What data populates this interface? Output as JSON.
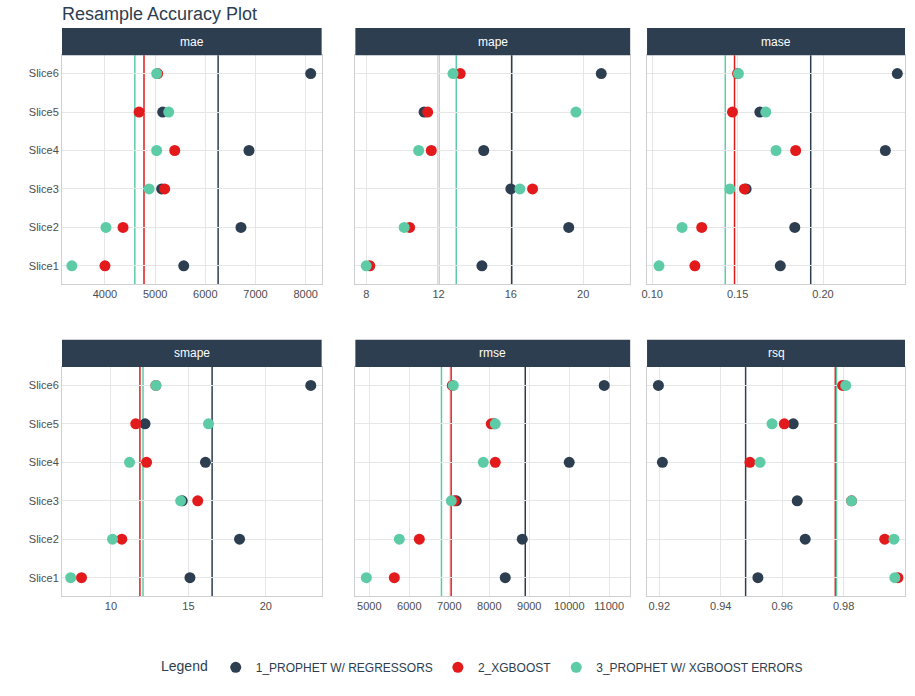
{
  "title": "Resample Accuracy Plot",
  "legend_title": "Legend",
  "legend": "bottom",
  "chart_data": [
    {
      "type": "scatter",
      "title": "mae",
      "grid": true,
      "marker": "circle",
      "categories": [
        "Slice1",
        "Slice2",
        "Slice3",
        "Slice4",
        "Slice5",
        "Slice6"
      ],
      "xlim": [
        3144,
        8318
      ],
      "xticks": [
        4000,
        5000,
        6000,
        7000,
        8000
      ],
      "series": [
        {
          "name": "1_PROPHET W/ REGRESSORS",
          "color": "#2c3e50",
          "values": [
            5570,
            6710,
            5130,
            6870,
            5150,
            8100
          ],
          "mean": 6255
        },
        {
          "name": "2_XGBOOST",
          "color": "#e31a1c",
          "values": [
            4000,
            4360,
            5190,
            5390,
            4680,
            5050
          ],
          "mean": 4778
        },
        {
          "name": "3_PROPHET W/ XGBOOST ERRORS",
          "color": "#5ccba6",
          "values": [
            3340,
            4020,
            4880,
            5030,
            5270,
            5030
          ],
          "mean": 4595
        }
      ]
    },
    {
      "type": "scatter",
      "title": "mape",
      "grid": true,
      "marker": "circle",
      "tick_labels": "x",
      "categories": [
        "Slice1",
        "Slice2",
        "Slice3",
        "Slice4",
        "Slice5",
        "Slice6"
      ],
      "xlim": [
        7.4,
        22.6
      ],
      "xticks": [
        8,
        12,
        16,
        20
      ],
      "series": [
        {
          "name": "1_PROPHET W/ REGRESSORS",
          "color": "#2c3e50",
          "values": [
            14.4,
            19.2,
            16.0,
            14.5,
            11.2,
            21.0
          ],
          "mean": 16.05
        },
        {
          "name": "2_XGBOOST",
          "color": "#e31a1c",
          "values": [
            8.2,
            10.4,
            17.2,
            11.6,
            11.4,
            13.2
          ],
          "mean": 12.0
        },
        {
          "name": "3_PROPHET W/ XGBOOST ERRORS",
          "color": "#5ccba6",
          "values": [
            8.0,
            10.1,
            16.5,
            10.9,
            19.6,
            12.8
          ],
          "mean": 12.98
        }
      ]
    },
    {
      "type": "scatter",
      "title": "mase",
      "grid": true,
      "marker": "circle",
      "tick_labels": "x",
      "categories": [
        "Slice1",
        "Slice2",
        "Slice3",
        "Slice4",
        "Slice5",
        "Slice6"
      ],
      "xlim": [
        0.097,
        0.248
      ],
      "xticks": [
        {
          "value": 0.1,
          "label": "0.10"
        },
        0.15,
        {
          "value": 0.2,
          "label": "0.20"
        }
      ],
      "series": [
        {
          "name": "1_PROPHET W/ REGRESSORS",
          "color": "#2c3e50",
          "values": [
            0.175,
            0.1835,
            0.155,
            0.2365,
            0.163,
            0.2435
          ],
          "mean": 0.1928
        },
        {
          "name": "2_XGBOOST",
          "color": "#e31a1c",
          "values": [
            0.125,
            0.129,
            0.154,
            0.184,
            0.147,
            0.15
          ],
          "mean": 0.1482
        },
        {
          "name": "3_PROPHET W/ XGBOOST ERRORS",
          "color": "#5ccba6",
          "values": [
            0.104,
            0.1175,
            0.1455,
            0.1725,
            0.1665,
            0.1505
          ],
          "mean": 0.1428
        }
      ]
    },
    {
      "type": "scatter",
      "title": "smape",
      "grid": true,
      "marker": "circle",
      "categories": [
        "Slice1",
        "Slice2",
        "Slice3",
        "Slice4",
        "Slice5",
        "Slice6"
      ],
      "xlim": [
        6.84,
        23.6
      ],
      "xticks": [
        10,
        15,
        20
      ],
      "series": [
        {
          "name": "1_PROPHET W/ REGRESSORS",
          "color": "#2c3e50",
          "values": [
            15.1,
            18.3,
            14.6,
            16.1,
            12.2,
            22.9
          ],
          "mean": 16.53
        },
        {
          "name": "2_XGBOOST",
          "color": "#e31a1c",
          "values": [
            8.1,
            10.7,
            15.6,
            12.3,
            11.6,
            12.9
          ],
          "mean": 11.87
        },
        {
          "name": "3_PROPHET W/ XGBOOST ERRORS",
          "color": "#5ccba6",
          "values": [
            7.4,
            10.1,
            14.5,
            11.2,
            16.3,
            12.9
          ],
          "mean": 12.07
        }
      ]
    },
    {
      "type": "scatter",
      "title": "rmse",
      "grid": true,
      "marker": "circle",
      "tick_labels": "x",
      "categories": [
        "Slice1",
        "Slice2",
        "Slice3",
        "Slice4",
        "Slice5",
        "Slice6"
      ],
      "xlim": [
        4650,
        11525
      ],
      "xticks": [
        5000,
        6000,
        7000,
        8000,
        9000,
        10000,
        11000
      ],
      "series": [
        {
          "name": "1_PROPHET W/ REGRESSORS",
          "color": "#2c3e50",
          "values": [
            8400,
            8825,
            7175,
            10000,
            8125,
            10875
          ],
          "mean": 8900
        },
        {
          "name": "2_XGBOOST",
          "color": "#e31a1c",
          "values": [
            5625,
            6250,
            7125,
            8150,
            8050,
            7075
          ],
          "mean": 7046
        },
        {
          "name": "3_PROPHET W/ XGBOOST ERRORS",
          "color": "#5ccba6",
          "values": [
            4925,
            5750,
            7050,
            7850,
            8150,
            7100
          ],
          "mean": 6804
        }
      ]
    },
    {
      "type": "scatter",
      "title": "rsq",
      "grid": true,
      "marker": "circle",
      "tick_labels": "x",
      "categories": [
        "Slice1",
        "Slice2",
        "Slice3",
        "Slice4",
        "Slice5",
        "Slice6"
      ],
      "xlim": [
        0.916,
        1.0
      ],
      "xticks": [
        0.92,
        0.94,
        0.96,
        0.98
      ],
      "series": [
        {
          "name": "1_PROPHET W/ REGRESSORS",
          "color": "#2c3e50",
          "values": [
            0.9521,
            0.9675,
            0.9649,
            0.921,
            0.9636,
            0.9197
          ],
          "mean": 0.9481
        },
        {
          "name": "2_XGBOOST",
          "color": "#e31a1c",
          "values": [
            0.9977,
            0.9934,
            0.9826,
            0.9495,
            0.9607,
            0.9797
          ],
          "mean": 0.9773
        },
        {
          "name": "3_PROPHET W/ XGBOOST ERRORS",
          "color": "#5ccba6",
          "values": [
            0.9967,
            0.9964,
            0.9826,
            0.9528,
            0.9567,
            0.9807
          ],
          "mean": 0.9777
        }
      ]
    }
  ]
}
